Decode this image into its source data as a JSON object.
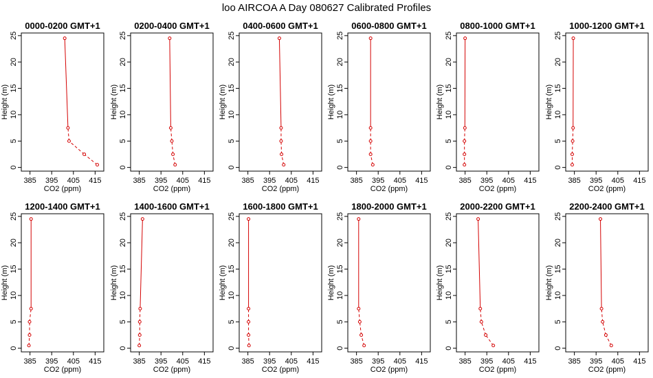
{
  "figure_title": "loo AIRCOA A  Day 080627  Calibrated Profiles",
  "style": {
    "line_color": "#d40000",
    "axis_color": "#000000",
    "background": "#ffffff"
  },
  "chart_data": {
    "type": "line",
    "title": "loo AIRCOA A  Day 080627  Calibrated Profiles",
    "xlabel": "CO2 (ppm)",
    "ylabel": "Height (m)",
    "xlim": [
      381,
      419
    ],
    "ylim": [
      -0.7,
      25.5
    ],
    "xticks": [
      385,
      395,
      405,
      415
    ],
    "yticks": [
      0,
      5,
      10,
      15,
      20,
      25
    ],
    "heights": [
      0.5,
      2.5,
      5,
      7.5,
      24.5
    ],
    "panels": [
      {
        "title": "0000-0200 GMT+1",
        "co2": [
          416,
          410,
          403,
          402.5,
          401
        ]
      },
      {
        "title": "0200-0400 GMT+1",
        "co2": [
          401.5,
          400.5,
          400,
          399.5,
          399
        ]
      },
      {
        "title": "0400-0600 GMT+1",
        "co2": [
          401.5,
          400.5,
          400.3,
          400.3,
          399.5
        ]
      },
      {
        "title": "0600-0800 GMT+1",
        "co2": [
          392.5,
          391.5,
          391.5,
          391.5,
          391.5
        ]
      },
      {
        "title": "0800-1000 GMT+1",
        "co2": [
          384.7,
          384.7,
          384.7,
          384.9,
          385
        ]
      },
      {
        "title": "1000-1200 GMT+1",
        "co2": [
          384,
          384,
          384.2,
          384.4,
          384.5
        ]
      },
      {
        "title": "1200-1400 GMT+1",
        "co2": [
          384.5,
          384.8,
          384.8,
          385.5,
          385.5
        ]
      },
      {
        "title": "1400-1600 GMT+1",
        "co2": [
          385,
          385.2,
          385.2,
          385.4,
          386.5
        ]
      },
      {
        "title": "1600-1800 GMT+1",
        "co2": [
          385.5,
          385.3,
          385.3,
          385.3,
          385.3
        ]
      },
      {
        "title": "1800-2000 GMT+1",
        "co2": [
          388.5,
          387.2,
          386.5,
          386,
          386
        ]
      },
      {
        "title": "2000-2200 GMT+1",
        "co2": [
          398,
          394.5,
          392.5,
          392,
          391
        ]
      },
      {
        "title": "2200-2400 GMT+1",
        "co2": [
          402,
          399.5,
          398,
          397.5,
          397
        ]
      }
    ]
  }
}
